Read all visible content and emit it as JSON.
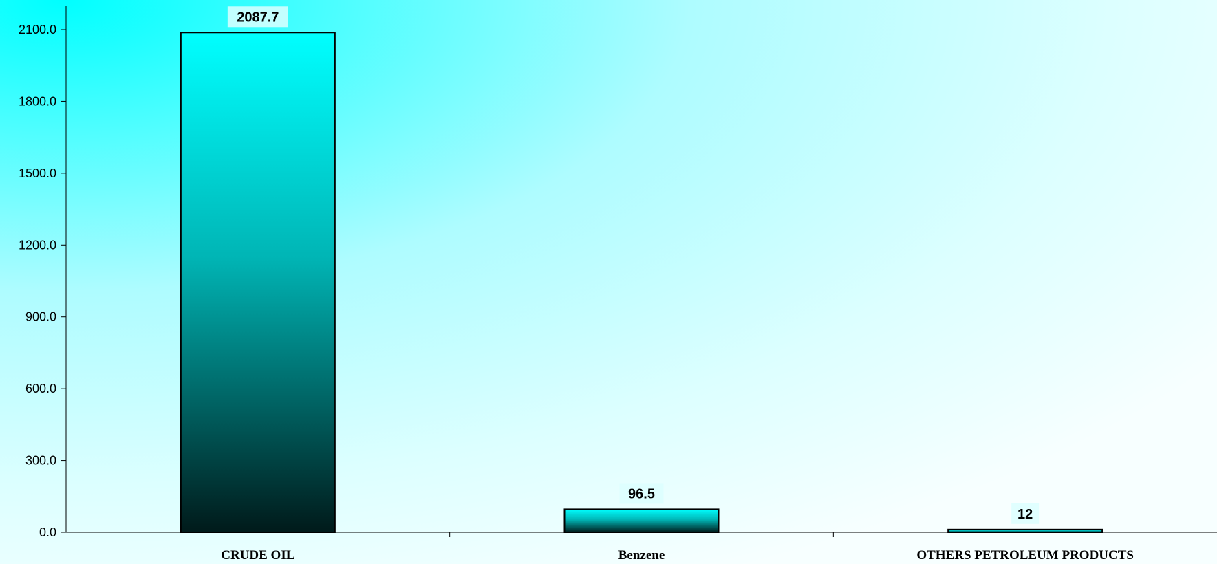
{
  "chart_data": {
    "type": "bar",
    "title": "",
    "xlabel": "",
    "ylabel": "",
    "categories": [
      "CRUDE OIL",
      "Benzene",
      "OTHERS PETROLEUM PRODUCTS"
    ],
    "values": [
      2087.7,
      96.5,
      12
    ],
    "data_labels": [
      "2087.7",
      "96.5",
      "12"
    ],
    "ylim": [
      0,
      2100
    ],
    "yticks": [
      0,
      300,
      600,
      900,
      1200,
      1500,
      1800,
      2100
    ],
    "ytick_labels": [
      "0.0",
      "300.0",
      "600.0",
      "900.0",
      "1200.0",
      "1500.0",
      "1800.0",
      "2100.0"
    ],
    "grid": false,
    "legend": "none",
    "colors": {
      "bar_top": "#00ffff",
      "bar_mid": "#00b5b5",
      "bar_bottom": "#001a1a",
      "bar_stroke": "#000000",
      "plot_bg_cyan": "#00ffff",
      "plot_bg_light": "#f4ffff",
      "label_bg": "#dcffff"
    }
  }
}
